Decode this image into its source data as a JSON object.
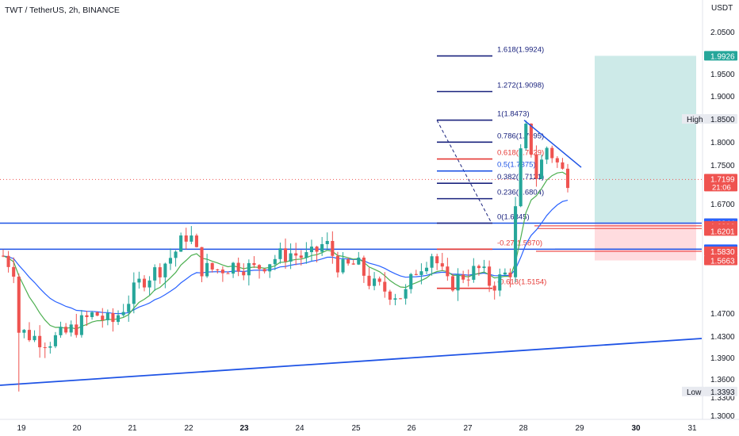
{
  "header": {
    "title": "TWT / TetherUS, 2h, BINANCE",
    "currency": "USDT"
  },
  "colors": {
    "up": "#26a69a",
    "down": "#ef5350",
    "ema_fast": "#4caf50",
    "ema_slow": "#2962ff",
    "trendline": "#1e53e5",
    "fib_main": "#1a237e",
    "fib_red": "#e53935",
    "fib_blue": "#1e53e5",
    "target_zone": "#b2dfdb",
    "stop_zone": "#ffcdd2"
  },
  "chart_data": {
    "type": "candlestick",
    "title": "TWT / TetherUS, 2h, BINANCE",
    "ylabel": "USDT",
    "ylim": [
      1.3,
      2.07
    ],
    "x_ticks": [
      "19",
      "20",
      "21",
      "22",
      "23",
      "24",
      "25",
      "26",
      "27",
      "28",
      "29",
      "30",
      "31"
    ],
    "y_ticks": [
      "2.0500",
      "1.9500",
      "1.9000",
      "1.8000",
      "1.7500",
      "1.6700",
      "1.4700",
      "1.4300",
      "1.3900",
      "1.3600",
      "1.3300",
      "1.3000"
    ],
    "price_labels": [
      {
        "text": "1.9926",
        "value": 1.9926,
        "bg": "#26a69a",
        "fg": "#ffffff"
      },
      {
        "text": "1.8500",
        "value": 1.85,
        "bg": "#e8eaf0",
        "fg": "#131722",
        "prefix": "High"
      },
      {
        "text": "1.7199",
        "value": 1.7199,
        "bg": "#ef5350",
        "fg": "#ffffff",
        "sub": "21:06"
      },
      {
        "text": "1.6345",
        "value": 1.6345,
        "bg": "#6b6f7a",
        "fg": "#ffffff"
      },
      {
        "text": "1.6344",
        "value": 1.6344,
        "bg": "#2962ff",
        "fg": "#ffffff"
      },
      {
        "text": "1.6296",
        "value": 1.6296,
        "bg": "#ef5350",
        "fg": "#ffffff"
      },
      {
        "text": "1.6246",
        "value": 1.6246,
        "bg": "#ef5350",
        "fg": "#ffffff"
      },
      {
        "text": "1.6201",
        "value": 1.6201,
        "bg": "#ef5350",
        "fg": "#ffffff"
      },
      {
        "text": "1.5869",
        "value": 1.5869,
        "bg": "#2962ff",
        "fg": "#ffffff"
      },
      {
        "text": "1.5830",
        "value": 1.583,
        "bg": "#ef5350",
        "fg": "#ffffff"
      },
      {
        "text": "1.5663",
        "value": 1.5663,
        "bg": "#ef5350",
        "fg": "#ffffff"
      },
      {
        "text": "1.3393",
        "value": 1.3393,
        "bg": "#e8eaf0",
        "fg": "#131722",
        "prefix": "Low"
      }
    ],
    "fib_levels": [
      {
        "label": "1.618(1.9924)",
        "value": 1.9924,
        "color": "#1a237e"
      },
      {
        "label": "1.272(1.9098)",
        "value": 1.9098,
        "color": "#1a237e"
      },
      {
        "label": "1(1.8473)",
        "value": 1.8473,
        "color": "#1a237e"
      },
      {
        "label": "0.786(1.7995)",
        "value": 1.7995,
        "color": "#1a237e"
      },
      {
        "label": "0.618(1.7629)",
        "value": 1.7629,
        "color": "#e53935"
      },
      {
        "label": "0.5(1.7375)",
        "value": 1.7375,
        "color": "#1e53e5"
      },
      {
        "label": "0.382(1.7121)",
        "value": 1.7121,
        "color": "#1a237e"
      },
      {
        "label": "0.236(1.6804)",
        "value": 1.6804,
        "color": "#1a237e"
      },
      {
        "label": "0(1.6345)",
        "value": 1.6345,
        "color": "#1a237e"
      },
      {
        "label": "-0.27(1.5870)",
        "value": 1.587,
        "color": "#e53935"
      },
      {
        "label": "-0.618(1.5154)",
        "value": 1.5154,
        "color": "#e53935"
      }
    ],
    "horizontal_lines": [
      {
        "value": 1.6345,
        "color": "#1e53e5"
      },
      {
        "value": 1.5869,
        "color": "#1e53e5"
      }
    ],
    "current_price": 1.7199,
    "high": 1.85,
    "low": 1.3393,
    "target_zone": {
      "top": 1.9926,
      "bottom": 1.6345
    },
    "stop_zone": {
      "top": 1.6345,
      "bottom": 1.5663
    }
  }
}
